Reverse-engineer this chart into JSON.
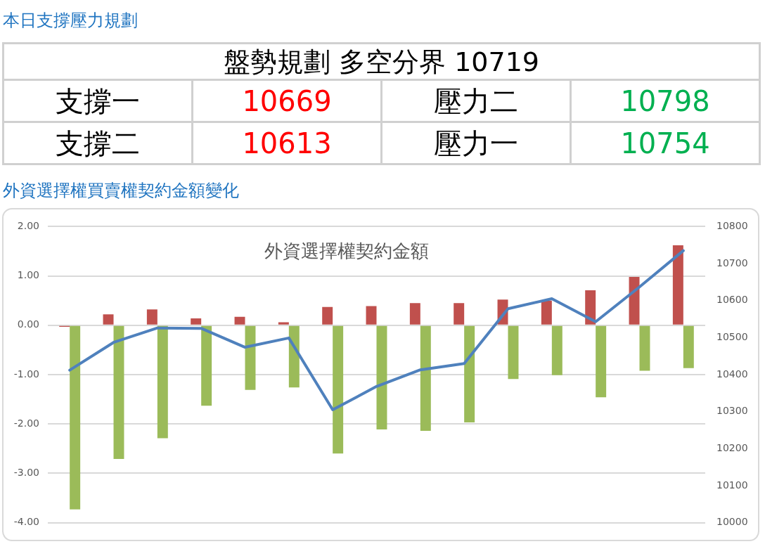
{
  "chart_data": [
    {
      "type": "other",
      "title": "本日支撐壓力規劃",
      "annotations": [
        "盤勢規劃 多空分界 10719",
        "支撐一",
        "10669",
        "壓力二",
        "10798",
        "支撐二",
        "10613",
        "壓力一",
        "10754"
      ]
    },
    {
      "type": "bar",
      "title": "外資選擇權買賣權契約金額變化",
      "subtitle": "外資選擇權契約金額",
      "categories": [
        null,
        null,
        null,
        null,
        null,
        null,
        null,
        null,
        null,
        null,
        null,
        null,
        null,
        null,
        null
      ],
      "series": [
        {
          "color": "#c0504d",
          "values": [
            -0.03,
            0.22,
            0.32,
            0.14,
            0.17,
            0.06,
            0.37,
            0.39,
            0.45,
            0.45,
            0.52,
            0.5,
            0.71,
            0.98,
            1.62
          ]
        },
        {
          "color": "#9bbb59",
          "values": [
            -3.73,
            -2.71,
            -2.29,
            -1.63,
            -1.31,
            -1.26,
            -2.6,
            -2.11,
            -2.14,
            -1.97,
            -1.09,
            -1.01,
            -1.46,
            -0.92,
            -0.87
          ]
        },
        {
          "type": "line",
          "axis": "y2",
          "color": "#4f81bd",
          "values": [
            10412,
            10487,
            10526,
            10525,
            10474,
            10499,
            10305,
            10368,
            10413,
            10430,
            10578,
            10605,
            10543,
            10637,
            10735
          ]
        }
      ],
      "ylim": [
        -4,
        2
      ],
      "yticks": [
        {
          "value": -4,
          "label": "-4.00"
        },
        {
          "value": -3,
          "label": "-3.00"
        },
        {
          "value": -2,
          "label": "-2.00"
        },
        {
          "value": -1,
          "label": "-1.00"
        },
        {
          "value": 0,
          "label": "0.00"
        },
        {
          "value": 1,
          "label": "1.00"
        },
        {
          "value": 2,
          "label": "2.00"
        }
      ],
      "y2lim": [
        10000,
        10800
      ],
      "y2ticks": [
        10000,
        10100,
        10200,
        10300,
        10400,
        10500,
        10600,
        10700,
        10800
      ],
      "grid": "y",
      "legend": false,
      "marker": "none"
    }
  ]
}
